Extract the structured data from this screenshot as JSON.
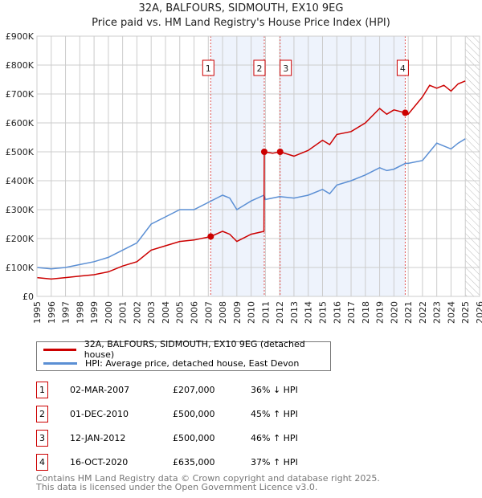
{
  "title": "32A, BALFOURS, SIDMOUTH, EX10 9EG",
  "subtitle": "Price paid vs. HM Land Registry's House Price Index (HPI)",
  "chart_data": {
    "type": "line",
    "title": "32A, BALFOURS, SIDMOUTH, EX10 9EG — Price paid vs. HM Land Registry's House Price Index (HPI)",
    "xlim": [
      1995,
      2026
    ],
    "ylim": [
      0,
      900000
    ],
    "x_ticks": [
      "1995",
      "1996",
      "1997",
      "1998",
      "1999",
      "2000",
      "2001",
      "2002",
      "2003",
      "2004",
      "2005",
      "2006",
      "2007",
      "2008",
      "2009",
      "2010",
      "2011",
      "2012",
      "2013",
      "2014",
      "2015",
      "2016",
      "2017",
      "2018",
      "2019",
      "2020",
      "2021",
      "2022",
      "2023",
      "2024",
      "2025",
      "2026"
    ],
    "y_ticks": [
      {
        "v": 0,
        "l": "£0"
      },
      {
        "v": 100000,
        "l": "£100K"
      },
      {
        "v": 200000,
        "l": "£200K"
      },
      {
        "v": 300000,
        "l": "£300K"
      },
      {
        "v": 400000,
        "l": "£400K"
      },
      {
        "v": 500000,
        "l": "£500K"
      },
      {
        "v": 600000,
        "l": "£600K"
      },
      {
        "v": 700000,
        "l": "£700K"
      },
      {
        "v": 800000,
        "l": "£800K"
      },
      {
        "v": 900000,
        "l": "£900K"
      }
    ],
    "series": [
      {
        "name": "32A, BALFOURS, SIDMOUTH, EX10 9EG (detached house)",
        "color": "#cc0000",
        "x": [
          1995,
          1996,
          1997,
          1998,
          1999,
          2000,
          2001,
          2002,
          2003,
          2004,
          2005,
          2006,
          2007.17,
          2008,
          2008.5,
          2009,
          2010,
          2010.9,
          2010.92,
          2011.5,
          2012.03,
          2013,
          2014,
          2015,
          2015.5,
          2016,
          2017,
          2018,
          2019,
          2019.5,
          2020,
          2020.79,
          2021,
          2022,
          2022.5,
          2023,
          2023.5,
          2024,
          2024.5,
          2025
        ],
        "y": [
          65000,
          60000,
          65000,
          70000,
          75000,
          85000,
          105000,
          120000,
          160000,
          175000,
          190000,
          195000,
          207000,
          225000,
          215000,
          190000,
          215000,
          225000,
          500000,
          495000,
          500000,
          485000,
          505000,
          540000,
          525000,
          560000,
          570000,
          600000,
          650000,
          630000,
          645000,
          635000,
          630000,
          690000,
          730000,
          720000,
          730000,
          710000,
          735000,
          745000
        ]
      },
      {
        "name": "HPI: Average price, detached house, East Devon",
        "color": "#5b8fd4",
        "x": [
          1995,
          1996,
          1997,
          1998,
          1999,
          2000,
          2001,
          2002,
          2003,
          2004,
          2005,
          2006,
          2007,
          2008,
          2008.5,
          2009,
          2010,
          2010.9,
          2011,
          2012,
          2013,
          2014,
          2015,
          2015.5,
          2016,
          2017,
          2018,
          2019,
          2019.5,
          2020,
          2020.8,
          2021,
          2022,
          2022.5,
          2023,
          2023.5,
          2024,
          2024.5,
          2025
        ],
        "y": [
          100000,
          95000,
          100000,
          110000,
          120000,
          135000,
          160000,
          185000,
          250000,
          275000,
          300000,
          300000,
          325000,
          350000,
          340000,
          300000,
          330000,
          350000,
          335000,
          345000,
          340000,
          350000,
          370000,
          355000,
          385000,
          400000,
          420000,
          445000,
          435000,
          440000,
          460000,
          460000,
          470000,
          500000,
          530000,
          520000,
          510000,
          530000,
          545000
        ]
      }
    ],
    "sales": [
      {
        "label": "1",
        "x": 2007.17,
        "y": 207000
      },
      {
        "label": "2",
        "x": 2010.92,
        "y": 500000
      },
      {
        "label": "3",
        "x": 2012.03,
        "y": 500000
      },
      {
        "label": "4",
        "x": 2020.79,
        "y": 635000
      }
    ],
    "shaded_ranges": [
      [
        2007.17,
        2010.92
      ],
      [
        2012.03,
        2020.79
      ]
    ],
    "forecast_hatch_from": 2025.0,
    "grid": true
  },
  "legend": {
    "items": [
      {
        "label": "32A, BALFOURS, SIDMOUTH, EX10 9EG (detached house)",
        "color": "#cc0000"
      },
      {
        "label": "HPI: Average price, detached house, East Devon",
        "color": "#5b8fd4"
      }
    ]
  },
  "transactions": [
    {
      "num": "1",
      "date": "02-MAR-2007",
      "price": "£207,000",
      "hpi": "36% ↓ HPI"
    },
    {
      "num": "2",
      "date": "01-DEC-2010",
      "price": "£500,000",
      "hpi": "45% ↑ HPI"
    },
    {
      "num": "3",
      "date": "12-JAN-2012",
      "price": "£500,000",
      "hpi": "46% ↑ HPI"
    },
    {
      "num": "4",
      "date": "16-OCT-2020",
      "price": "£635,000",
      "hpi": "37% ↑ HPI"
    }
  ],
  "footer": {
    "line1": "Contains HM Land Registry data © Crown copyright and database right 2025.",
    "line2": "This data is licensed under the Open Government Licence v3.0."
  }
}
